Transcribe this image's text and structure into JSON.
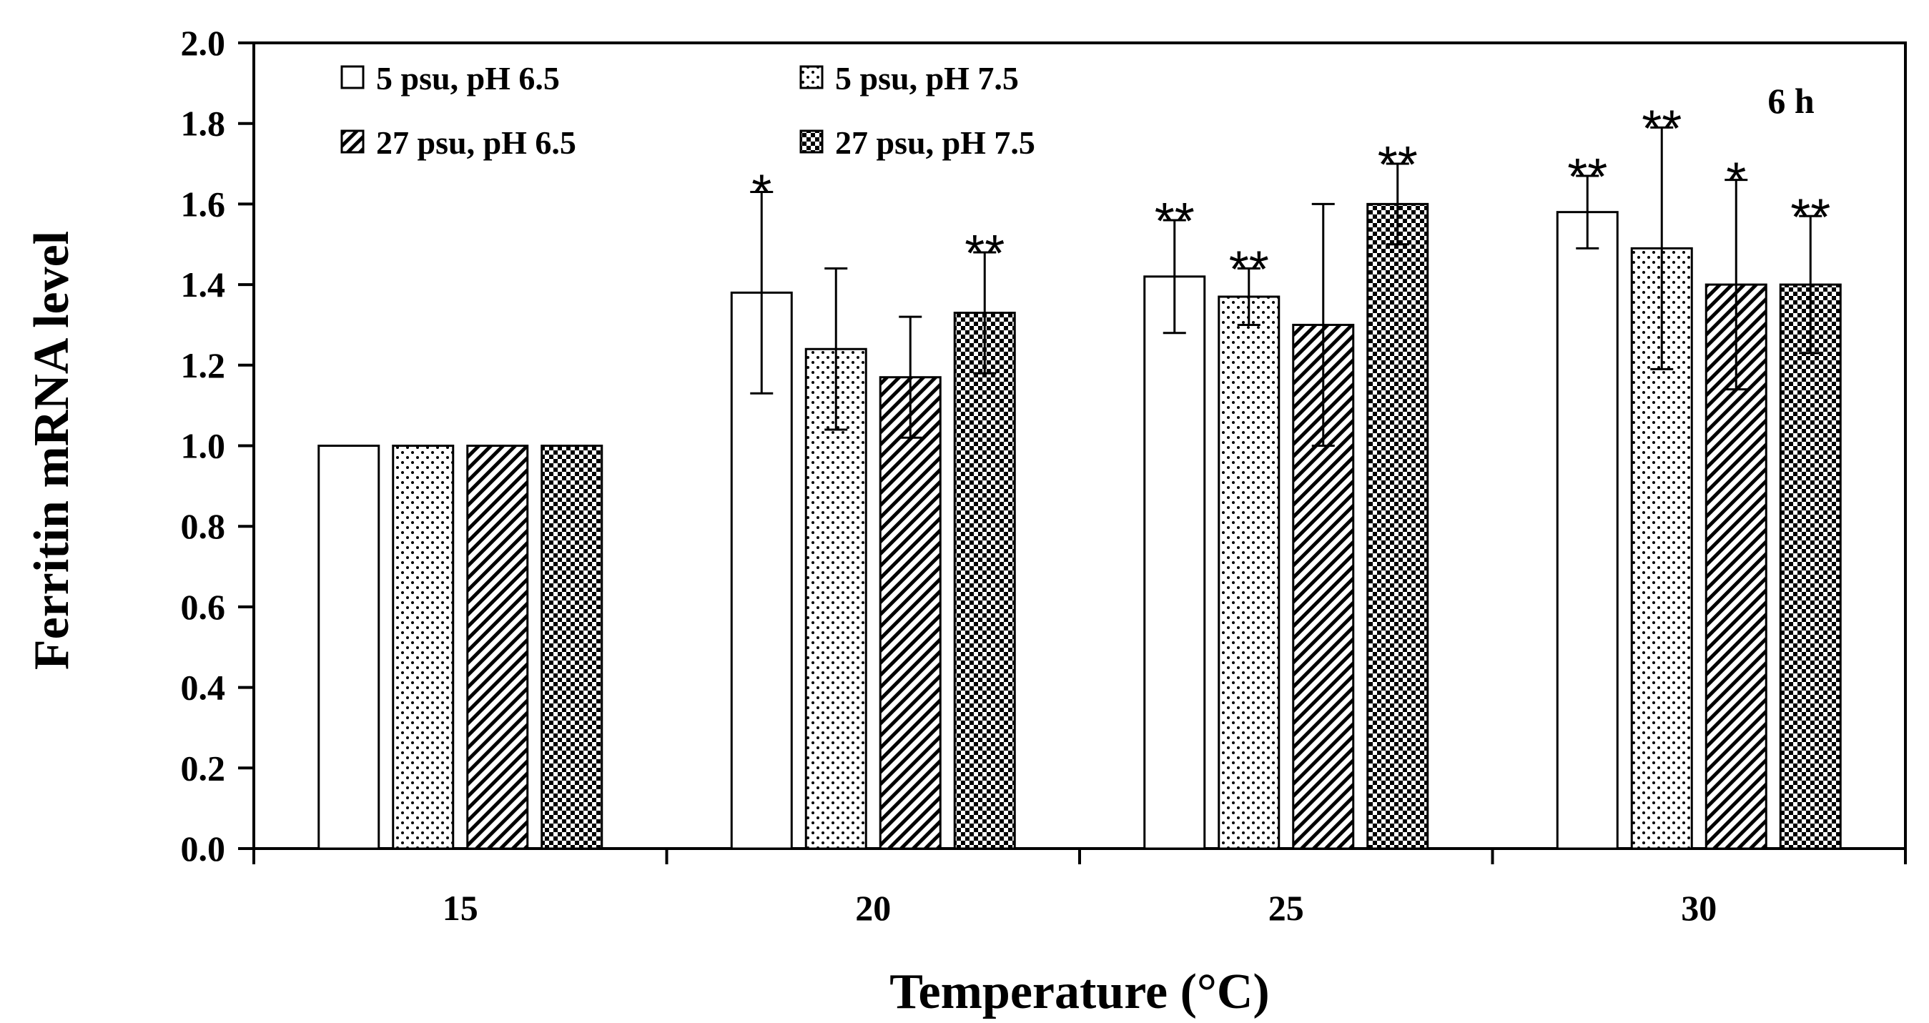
{
  "chart_data": {
    "type": "bar",
    "title": "",
    "panel_label": "6 h",
    "xlabel": "Temperature (°C)",
    "ylabel": "Ferritin  mRNA  level",
    "ylim": [
      0,
      2.0
    ],
    "yticks": [
      "0.0",
      "0.2",
      "0.4",
      "0.6",
      "0.8",
      "1.0",
      "1.2",
      "1.4",
      "1.6",
      "1.8",
      "2.0"
    ],
    "categories": [
      "15",
      "20",
      "25",
      "30"
    ],
    "legend_position": "top-left",
    "grid": false,
    "series": [
      {
        "name": "5 psu, pH 6.5",
        "pattern": "open",
        "values": [
          1.0,
          1.38,
          1.42,
          1.58
        ],
        "errors": [
          0,
          0.25,
          0.14,
          0.09
        ],
        "annotations": [
          "",
          "*",
          "**",
          "**"
        ]
      },
      {
        "name": "5 psu, pH 7.5",
        "pattern": "dots",
        "values": [
          1.0,
          1.24,
          1.37,
          1.49
        ],
        "errors": [
          0,
          0.2,
          0.07,
          0.3
        ],
        "annotations": [
          "",
          "",
          "**",
          "**"
        ]
      },
      {
        "name": "27 psu, pH 6.5",
        "pattern": "hatch",
        "values": [
          1.0,
          1.17,
          1.3,
          1.4
        ],
        "errors": [
          0,
          0.15,
          0.3,
          0.26
        ],
        "annotations": [
          "",
          "",
          "",
          "*"
        ]
      },
      {
        "name": "27 psu, pH 7.5",
        "pattern": "checker",
        "values": [
          1.0,
          1.33,
          1.6,
          1.4
        ],
        "errors": [
          0,
          0.15,
          0.1,
          0.17
        ],
        "annotations": [
          "",
          "**",
          "**",
          "**"
        ]
      }
    ]
  }
}
